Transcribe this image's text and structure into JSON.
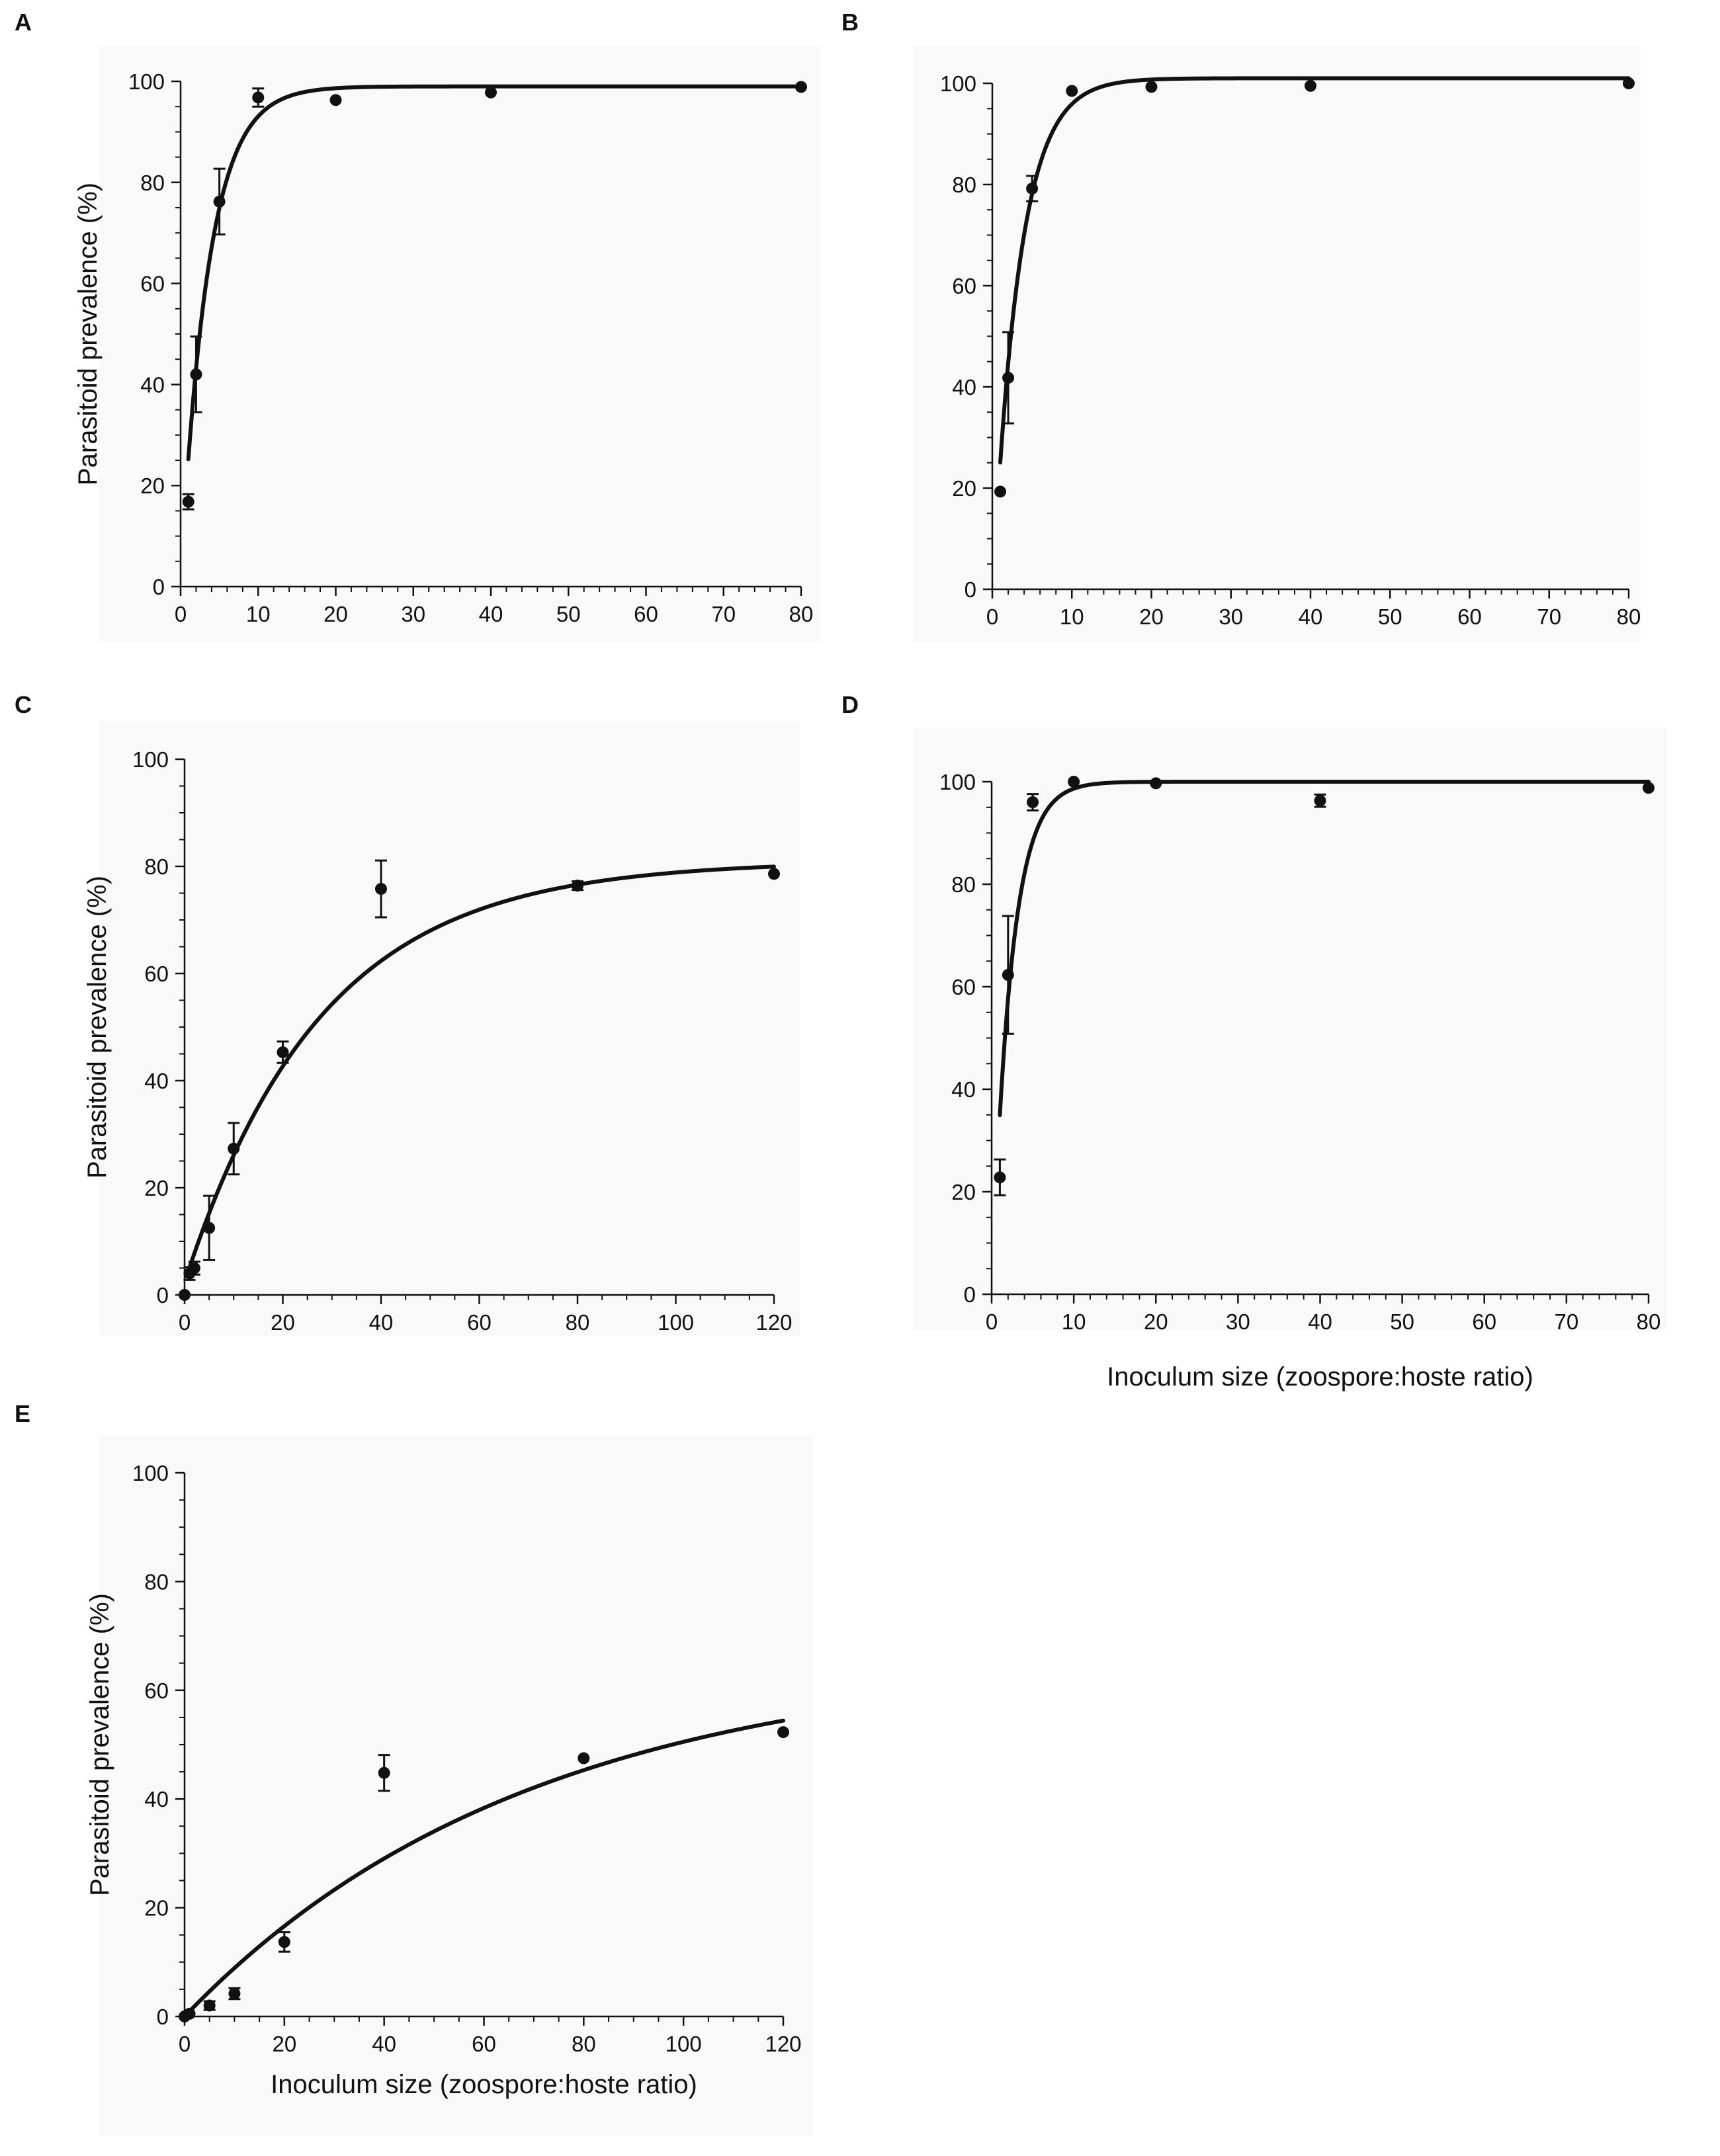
{
  "colors": {
    "ink": "#111111",
    "panel_background": "#f9f9f9",
    "page_background": "#ffffff"
  },
  "chart_data": [
    {
      "panel": "A",
      "type": "scatter",
      "ylabel": "Parasitoid prevalence (%)",
      "xlabel": "",
      "xlim": [
        0,
        80
      ],
      "ylim": [
        0,
        100
      ],
      "xticks": [
        "0",
        "10",
        "20",
        "30",
        "40",
        "50",
        "60",
        "70",
        "80"
      ],
      "yticks": [
        "0",
        "20",
        "40",
        "60",
        "80",
        "100"
      ],
      "points": [
        {
          "x": 1,
          "y": 16.8,
          "err": 1.5
        },
        {
          "x": 2,
          "y": 42,
          "err": 7.5
        },
        {
          "x": 5,
          "y": 76.2,
          "err": 6.5
        },
        {
          "x": 10,
          "y": 96.8,
          "err": 1.8
        },
        {
          "x": 20,
          "y": 96.3,
          "err": 0
        },
        {
          "x": 40,
          "y": 97.8,
          "err": 0
        },
        {
          "x": 80,
          "y": 98.9,
          "err": 0
        }
      ],
      "fit": {
        "a": 99,
        "k": 0.28,
        "x0": -0.05,
        "xmin": 1,
        "xmax": 80
      },
      "grid": false
    },
    {
      "panel": "B",
      "type": "scatter",
      "ylabel": "",
      "xlabel": "",
      "xlim": [
        0,
        80
      ],
      "ylim": [
        0,
        100
      ],
      "xticks": [
        "0",
        "10",
        "20",
        "30",
        "40",
        "50",
        "60",
        "70",
        "80"
      ],
      "yticks": [
        "0",
        "20",
        "40",
        "60",
        "80",
        "100"
      ],
      "points": [
        {
          "x": 1,
          "y": 19.3,
          "err": 0
        },
        {
          "x": 2,
          "y": 41.8,
          "err": 9
        },
        {
          "x": 5,
          "y": 79.2,
          "err": 2.5
        },
        {
          "x": 10,
          "y": 98.5,
          "err": 0
        },
        {
          "x": 20,
          "y": 99.3,
          "err": 0
        },
        {
          "x": 40,
          "y": 99.5,
          "err": 0
        },
        {
          "x": 80,
          "y": 100,
          "err": 0
        }
      ],
      "fit": {
        "a": 101,
        "k": 0.3,
        "x0": 0.05,
        "xmin": 1,
        "xmax": 80
      },
      "grid": false
    },
    {
      "panel": "C",
      "type": "scatter",
      "ylabel": "Parasitoid prevalence (%)",
      "xlabel": "",
      "xlim": [
        0,
        120
      ],
      "ylim": [
        0,
        100
      ],
      "xticks": [
        "0",
        "20",
        "40",
        "60",
        "80",
        "100",
        "120"
      ],
      "yticks": [
        "0",
        "20",
        "40",
        "60",
        "80",
        "100"
      ],
      "points": [
        {
          "x": 0,
          "y": 0,
          "err": 0
        },
        {
          "x": 1,
          "y": 4,
          "err": 1.2
        },
        {
          "x": 2,
          "y": 5,
          "err": 1.2
        },
        {
          "x": 5,
          "y": 12.5,
          "err": 6
        },
        {
          "x": 10,
          "y": 27.3,
          "err": 4.8
        },
        {
          "x": 20,
          "y": 45.3,
          "err": 2
        },
        {
          "x": 40,
          "y": 75.8,
          "err": 5.3
        },
        {
          "x": 80,
          "y": 76.4,
          "err": 0.8
        },
        {
          "x": 120,
          "y": 78.6,
          "err": 0
        }
      ],
      "fit": {
        "a": 81,
        "k": 0.036,
        "x0": -0.8,
        "xmin": 1,
        "xmax": 120
      },
      "grid": false
    },
    {
      "panel": "D",
      "type": "scatter",
      "ylabel": "",
      "xlabel": "Inoculum size (zoospore:hoste ratio)",
      "xlim": [
        0,
        80
      ],
      "ylim": [
        0,
        100
      ],
      "xticks": [
        "0",
        "10",
        "20",
        "30",
        "40",
        "50",
        "60",
        "70",
        "80"
      ],
      "yticks": [
        "0",
        "20",
        "40",
        "60",
        "80",
        "100"
      ],
      "points": [
        {
          "x": 1,
          "y": 22.8,
          "err": 3.5
        },
        {
          "x": 2,
          "y": 62.3,
          "err": 11.5
        },
        {
          "x": 5,
          "y": 96,
          "err": 1.6
        },
        {
          "x": 10,
          "y": 100,
          "err": 0
        },
        {
          "x": 20,
          "y": 99.7,
          "err": 0
        },
        {
          "x": 40,
          "y": 96.3,
          "err": 1.2
        },
        {
          "x": 80,
          "y": 98.8,
          "err": 0
        }
      ],
      "fit": {
        "a": 100,
        "k": 0.43,
        "x0": 0.0,
        "xmin": 1,
        "xmax": 80
      },
      "grid": false
    },
    {
      "panel": "E",
      "type": "scatter",
      "ylabel": "Parasitoid prevalence (%)",
      "xlabel": "Inoculum size (zoospore:hoste ratio)",
      "xlim": [
        0,
        120
      ],
      "ylim": [
        0,
        100
      ],
      "xticks": [
        "0",
        "20",
        "40",
        "60",
        "80",
        "100",
        "120"
      ],
      "yticks": [
        "0",
        "20",
        "40",
        "60",
        "80",
        "100"
      ],
      "points": [
        {
          "x": 0,
          "y": 0,
          "err": 0
        },
        {
          "x": 1,
          "y": 0.5,
          "err": 0
        },
        {
          "x": 5,
          "y": 2,
          "err": 0.8
        },
        {
          "x": 10,
          "y": 4.2,
          "err": 1
        },
        {
          "x": 20,
          "y": 13.7,
          "err": 1.8
        },
        {
          "x": 40,
          "y": 44.8,
          "err": 3.3
        },
        {
          "x": 80,
          "y": 47.5,
          "err": 0
        },
        {
          "x": 120,
          "y": 52.3,
          "err": 0
        }
      ],
      "fit": {
        "a": 66,
        "k": 0.0145,
        "x0": 0,
        "xmin": 0,
        "xmax": 120
      },
      "grid": false
    }
  ]
}
